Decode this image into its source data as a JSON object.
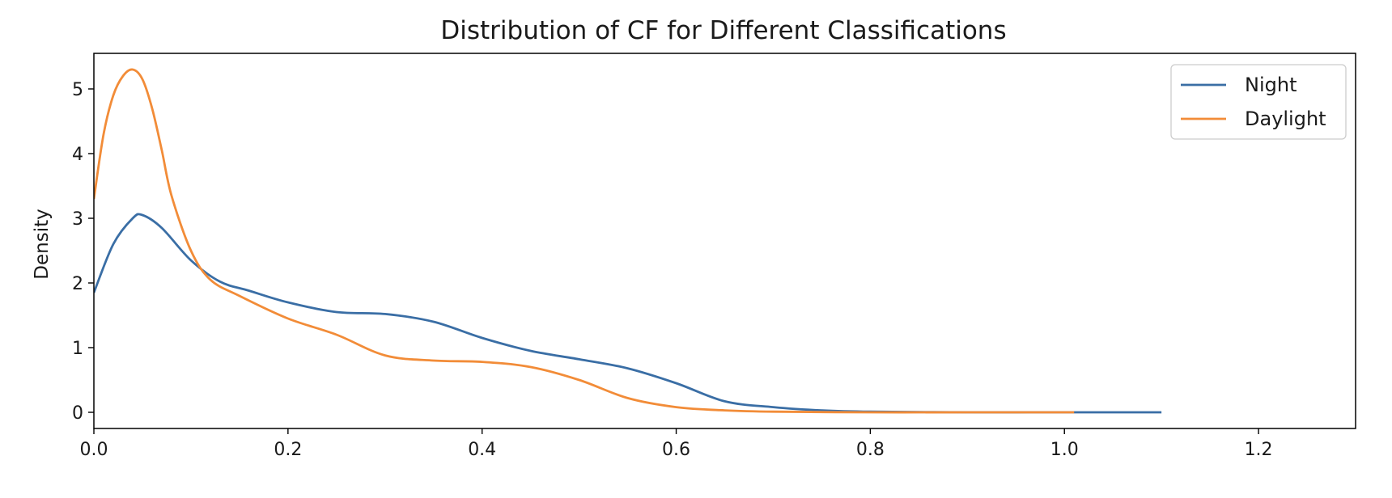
{
  "chart_data": {
    "type": "line",
    "title": "Distribution of CF for Different Classifications",
    "xlabel": "",
    "ylabel": "Density",
    "xlim": [
      0.0,
      1.3
    ],
    "ylim": [
      -0.25,
      5.55
    ],
    "xticks": [
      0.0,
      0.2,
      0.4,
      0.6,
      0.8,
      1.0,
      1.2
    ],
    "xtick_labels": [
      "0.0",
      "0.2",
      "0.4",
      "0.6",
      "0.8",
      "1.0",
      "1.2"
    ],
    "yticks": [
      0,
      1,
      2,
      3,
      4,
      5
    ],
    "ytick_labels": [
      "0",
      "1",
      "2",
      "3",
      "4",
      "5"
    ],
    "grid": false,
    "legend_position": "top-right",
    "series": [
      {
        "name": "Night",
        "color": "#3a6ea5",
        "x": [
          0.0,
          0.02,
          0.04,
          0.05,
          0.07,
          0.1,
          0.13,
          0.16,
          0.2,
          0.25,
          0.3,
          0.35,
          0.4,
          0.45,
          0.5,
          0.55,
          0.6,
          0.65,
          0.7,
          0.75,
          0.8,
          0.9,
          1.0,
          1.1
        ],
        "y": [
          1.85,
          2.6,
          3.0,
          3.05,
          2.85,
          2.35,
          2.02,
          1.88,
          1.7,
          1.55,
          1.52,
          1.4,
          1.15,
          0.95,
          0.82,
          0.68,
          0.45,
          0.17,
          0.08,
          0.03,
          0.01,
          0.0,
          0.0,
          0.0
        ]
      },
      {
        "name": "Daylight",
        "color": "#f28c38",
        "x": [
          0.0,
          0.01,
          0.02,
          0.03,
          0.04,
          0.05,
          0.06,
          0.07,
          0.08,
          0.1,
          0.12,
          0.15,
          0.2,
          0.25,
          0.3,
          0.35,
          0.4,
          0.45,
          0.5,
          0.55,
          0.6,
          0.65,
          0.7,
          0.8,
          0.9,
          1.01
        ],
        "y": [
          3.3,
          4.3,
          4.9,
          5.2,
          5.3,
          5.15,
          4.7,
          4.05,
          3.35,
          2.5,
          2.05,
          1.8,
          1.45,
          1.2,
          0.88,
          0.8,
          0.78,
          0.7,
          0.5,
          0.22,
          0.08,
          0.03,
          0.01,
          0.0,
          0.0,
          0.0
        ]
      }
    ]
  }
}
